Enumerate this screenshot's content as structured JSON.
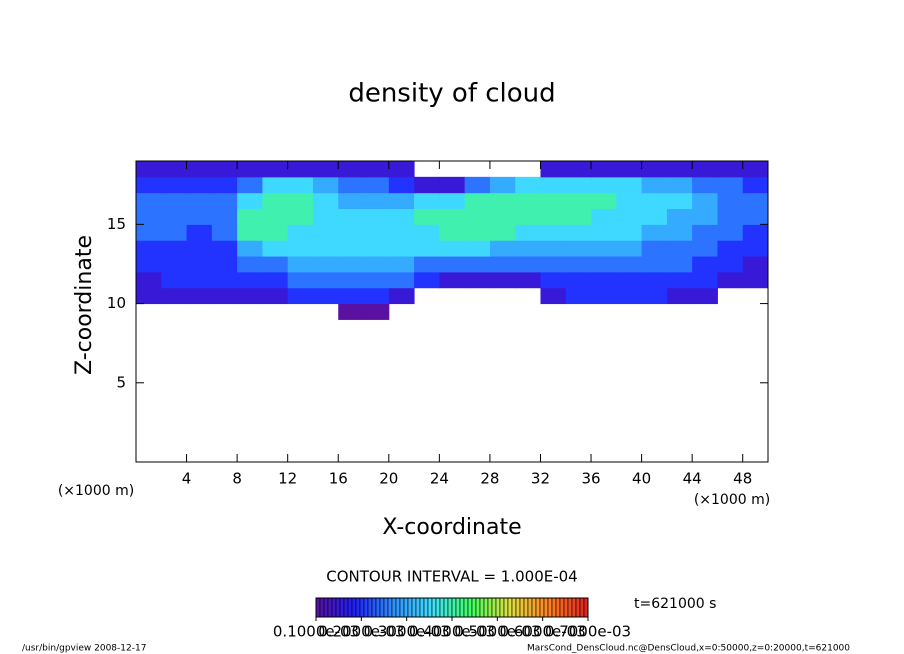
{
  "chart_data": {
    "type": "heatmap",
    "title": "density of cloud",
    "xlabel": "X-coordinate",
    "ylabel": "Z-coordinate",
    "x_unit": "(×1000 m)",
    "y_unit": "(×1000 m)",
    "xlim": [
      0,
      50
    ],
    "ylim": [
      0,
      19
    ],
    "xticks": [
      4,
      8,
      12,
      16,
      20,
      24,
      28,
      32,
      36,
      40,
      44,
      48
    ],
    "yticks": [
      5,
      10,
      15
    ],
    "x": [
      1,
      3,
      5,
      7,
      9,
      11,
      13,
      15,
      17,
      19,
      21,
      23,
      25,
      27,
      29,
      31,
      33,
      35,
      37,
      39,
      41,
      43,
      45,
      47,
      49
    ],
    "y": [
      9.5,
      10.5,
      11.5,
      12.5,
      13.5,
      14.5,
      15.5,
      16.5,
      17.5,
      18.5
    ],
    "z": [
      [
        null,
        null,
        null,
        null,
        null,
        null,
        null,
        null,
        0.0001,
        0.0001,
        null,
        null,
        null,
        null,
        null,
        null,
        null,
        null,
        null,
        null,
        null,
        null,
        null,
        null,
        null
      ],
      [
        0.00015,
        0.00015,
        0.00015,
        0.00015,
        0.00015,
        0.00015,
        0.0002,
        0.0002,
        0.0002,
        0.0002,
        0.00015,
        null,
        null,
        null,
        null,
        null,
        0.00015,
        0.0002,
        0.0002,
        0.0002,
        0.0002,
        0.00015,
        0.00015,
        null,
        null
      ],
      [
        0.00015,
        0.0002,
        0.0002,
        0.0002,
        0.0002,
        0.0002,
        0.00025,
        0.00025,
        0.00025,
        0.00025,
        0.00025,
        0.0002,
        0.00015,
        0.00015,
        0.00015,
        0.00015,
        0.0002,
        0.0002,
        0.0002,
        0.0002,
        0.0002,
        0.0002,
        0.0002,
        0.00015,
        0.00015
      ],
      [
        0.0002,
        0.0002,
        0.0002,
        0.0002,
        0.00025,
        0.00025,
        0.0003,
        0.0003,
        0.0003,
        0.0003,
        0.0003,
        0.00025,
        0.00025,
        0.00025,
        0.00025,
        0.00025,
        0.00025,
        0.00025,
        0.00025,
        0.00025,
        0.00025,
        0.00025,
        0.0002,
        0.0002,
        0.00015
      ],
      [
        0.0002,
        0.0002,
        0.0002,
        0.0002,
        0.0003,
        0.00035,
        0.00035,
        0.00035,
        0.00035,
        0.00035,
        0.00035,
        0.00035,
        0.00035,
        0.00035,
        0.0003,
        0.0003,
        0.0003,
        0.0003,
        0.0003,
        0.0003,
        0.00025,
        0.00025,
        0.00025,
        0.0002,
        0.0002
      ],
      [
        0.00025,
        0.00025,
        0.0002,
        0.00025,
        0.0004,
        0.0004,
        0.00035,
        0.00035,
        0.00035,
        0.00035,
        0.00035,
        0.00035,
        0.0004,
        0.0004,
        0.0004,
        0.00035,
        0.00035,
        0.00035,
        0.00035,
        0.00035,
        0.0003,
        0.0003,
        0.00025,
        0.00025,
        0.0002
      ],
      [
        0.00025,
        0.00025,
        0.00025,
        0.00025,
        0.0004,
        0.0004,
        0.0004,
        0.00035,
        0.00035,
        0.00035,
        0.00035,
        0.0004,
        0.0004,
        0.0004,
        0.0004,
        0.0004,
        0.0004,
        0.0004,
        0.00035,
        0.00035,
        0.00035,
        0.0003,
        0.0003,
        0.00025,
        0.00025
      ],
      [
        0.00025,
        0.00025,
        0.00025,
        0.00025,
        0.00035,
        0.0004,
        0.0004,
        0.00035,
        0.0003,
        0.0003,
        0.0003,
        0.00035,
        0.00035,
        0.0004,
        0.0004,
        0.0004,
        0.0004,
        0.0004,
        0.0004,
        0.00035,
        0.00035,
        0.00035,
        0.0003,
        0.00025,
        0.00025
      ],
      [
        0.0002,
        0.0002,
        0.0002,
        0.0002,
        0.00025,
        0.00035,
        0.00035,
        0.0003,
        0.00025,
        0.00025,
        0.0002,
        0.00015,
        0.00015,
        0.00025,
        0.0003,
        0.00035,
        0.00035,
        0.00035,
        0.00035,
        0.00035,
        0.0003,
        0.0003,
        0.00025,
        0.00025,
        0.0002
      ],
      [
        0.00015,
        0.00015,
        0.00015,
        0.00015,
        0.00015,
        0.00015,
        0.00015,
        0.00015,
        0.00015,
        0.00015,
        0.00015,
        null,
        null,
        null,
        null,
        null,
        0.00015,
        0.00015,
        0.00015,
        0.00015,
        0.00015,
        0.00015,
        0.00015,
        0.00015,
        0.00015
      ]
    ],
    "colormap": [
      "#5a10a0",
      "#2020ff",
      "#3090ff",
      "#40e0ff",
      "#40ff60",
      "#e0e040",
      "#ff8020",
      "#e02020"
    ],
    "colorlim": [
      0.0001,
      0.0007
    ],
    "colorticks": [
      {
        "value": 0.0001,
        "label": "0.1000e-03"
      },
      {
        "value": 0.0002,
        "label": "0.2000e-03"
      },
      {
        "value": 0.0003,
        "label": "0.3000e-03"
      },
      {
        "value": 0.0004,
        "label": "0.4000e-03"
      },
      {
        "value": 0.0005,
        "label": "0.5000e-03"
      },
      {
        "value": 0.0006,
        "label": "0.6000e-03"
      },
      {
        "value": 0.0007,
        "label": "0.7000e-03"
      }
    ],
    "contour_note": "CONTOUR INTERVAL = 1.000E-04",
    "time_note": "t=621000 s",
    "footer_left": "/usr/bin/gpview  2008-12-17",
    "footer_right": "MarsCond_DensCloud.nc@DensCloud,x=0:50000,z=0:20000,t=621000"
  }
}
